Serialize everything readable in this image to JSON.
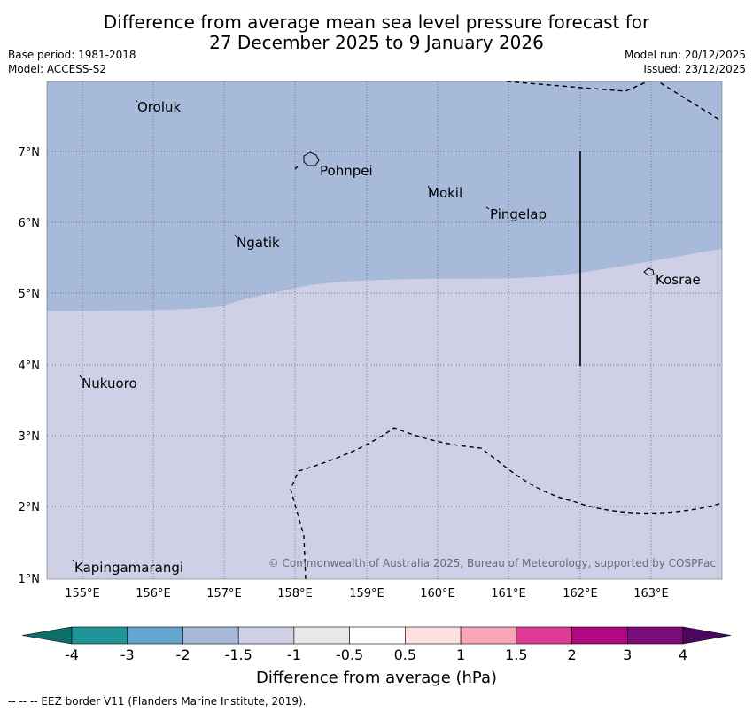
{
  "title": {
    "line1": "Difference from average mean sea level pressure forecast for",
    "line2": "27 December 2025 to 9 January 2026"
  },
  "meta": {
    "base_period": "Base period: 1981-2018",
    "model": "Model: ACCESS-S2",
    "model_run": "Model run: 20/12/2025",
    "issued": "Issued: 23/12/2025"
  },
  "map": {
    "lat_labels": [
      "7°N",
      "6°N",
      "5°N",
      "4°N",
      "3°N",
      "2°N",
      "1°N"
    ],
    "lon_labels": [
      "155°E",
      "156°E",
      "157°E",
      "158°E",
      "159°E",
      "160°E",
      "161°E",
      "162°E",
      "163°E"
    ],
    "places": [
      "Oroluk",
      "Pohnpei",
      "Mokil",
      "Pingelap",
      "Ngatik",
      "Kosrae",
      "Nukuoro",
      "Kapingamarangi"
    ],
    "copyright": "© Commonwealth of Australia 2025, Bureau of Meteorology, supported by COSPPac",
    "colors": {
      "band_minus2": "#a7bad9",
      "band_minus1_5": "#cfd0e6"
    }
  },
  "colorbar": {
    "labels": [
      "-4",
      "-3",
      "-2",
      "-1.5",
      "-1",
      "-0.5",
      "0.5",
      "1",
      "1.5",
      "2",
      "3",
      "4"
    ],
    "colors": [
      "#0e6f6a",
      "#1f9499",
      "#62a5cd",
      "#a7bad9",
      "#cfd0e6",
      "#e8e8e8",
      "#ffffff",
      "#fde0e0",
      "#f8a5b8",
      "#df3b96",
      "#b0087f",
      "#7b0a7a",
      "#4c0660"
    ],
    "title": "Difference from average (hPa)"
  },
  "footnote": "--  --  -- EEZ border V11 (Flanders Marine Institute, 2019)."
}
